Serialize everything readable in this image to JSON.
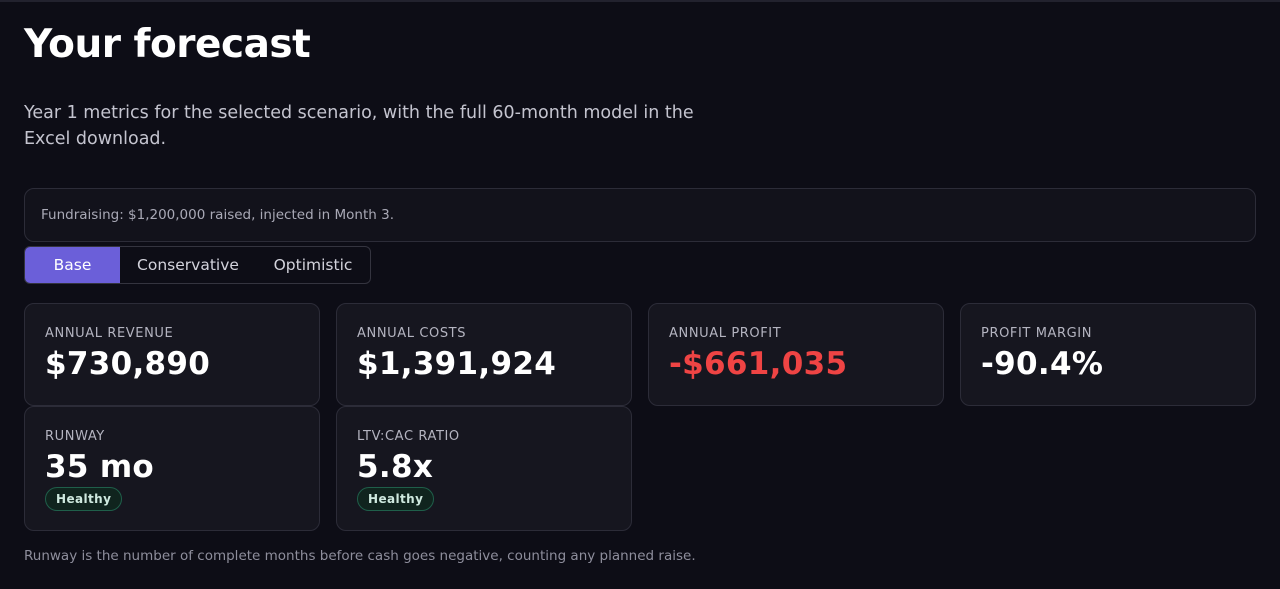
{
  "header": {
    "title": "Your forecast",
    "subtitle": "Year 1 metrics for the selected scenario, with the full 60-month model in the Excel download."
  },
  "notice": {
    "text": "Fundraising: $1,200,000 raised, injected in Month 3."
  },
  "scenario_tabs": [
    {
      "label": "Base",
      "active": true
    },
    {
      "label": "Conservative",
      "active": false
    },
    {
      "label": "Optimistic",
      "active": false
    }
  ],
  "metrics": {
    "annual_revenue": {
      "label": "ANNUAL REVENUE",
      "value": "$730,890"
    },
    "annual_costs": {
      "label": "ANNUAL COSTS",
      "value": "$1,391,924"
    },
    "annual_profit": {
      "label": "ANNUAL PROFIT",
      "value": "-$661,035"
    },
    "profit_margin": {
      "label": "PROFIT MARGIN",
      "value": "-90.4%"
    },
    "runway": {
      "label": "RUNWAY",
      "value": "35 mo",
      "badge": "Healthy"
    },
    "ltv_cac": {
      "label": "LTV:CAC RATIO",
      "value": "5.8x",
      "badge": "Healthy"
    }
  },
  "footnote": "Runway is the number of complete months before cash goes negative, counting any planned raise.",
  "colors": {
    "background": "#0d0d16",
    "card": "#16161f",
    "accent": "#6b5fd9",
    "negative": "#ef4444",
    "healthy_badge": "#10241e"
  }
}
